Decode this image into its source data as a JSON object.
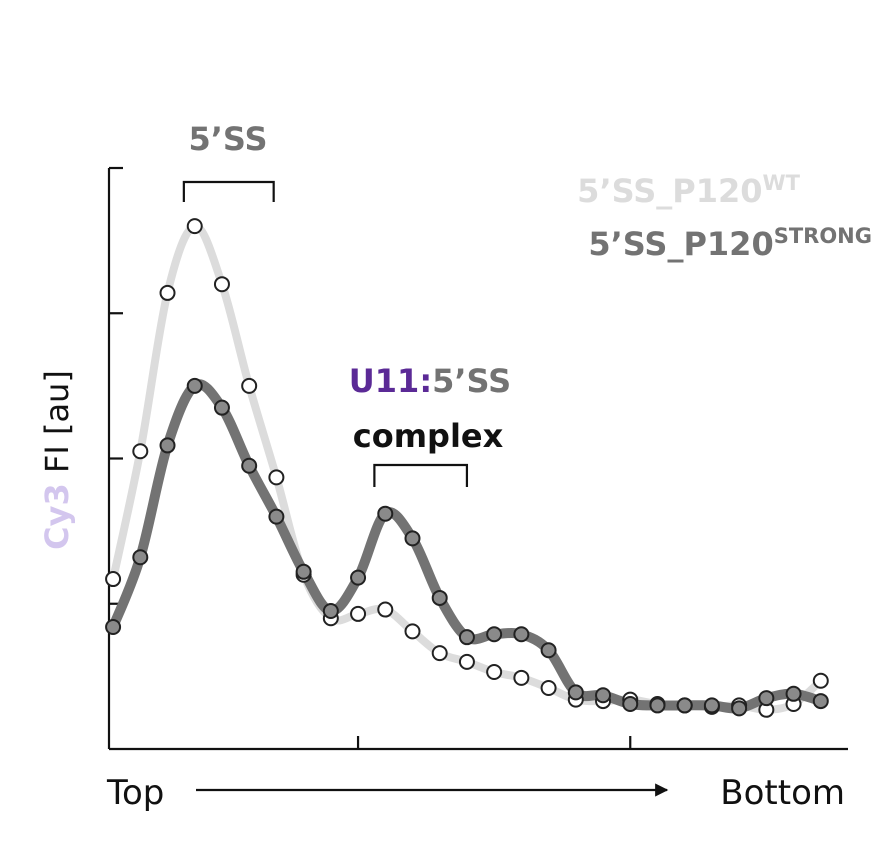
{
  "chart_data": {
    "type": "line",
    "ylabel_parts": [
      {
        "text": "Cy3",
        "color": "#d3c6ee"
      },
      {
        "text": " FI [au]",
        "color": "#111111"
      }
    ],
    "xlabel_left": "Top",
    "xlabel_right": "Bottom",
    "x": [
      1,
      2,
      3,
      4,
      5,
      6,
      7,
      8,
      9,
      10,
      11,
      12,
      13,
      14,
      15,
      16,
      17,
      18,
      19,
      20,
      21,
      22,
      23,
      24,
      25,
      26,
      27
    ],
    "xlim": [
      0.85,
      28
    ],
    "ylim": [
      0,
      4
    ],
    "y_ticks": [
      1,
      2,
      3,
      4
    ],
    "x_ticks": [
      10,
      20
    ],
    "series": [
      {
        "name": "5’SS_P120WT",
        "name_base": "5’SS_P120",
        "name_sup": "WT",
        "color": "#dcdcdc",
        "marker_fill": "#ffffff",
        "values": [
          1.17,
          2.05,
          3.14,
          3.6,
          3.2,
          2.5,
          1.87,
          1.2,
          0.9,
          0.93,
          0.96,
          0.81,
          0.66,
          0.6,
          0.53,
          0.49,
          0.42,
          0.34,
          0.33,
          0.34,
          0.31,
          0.3,
          0.29,
          0.3,
          0.27,
          0.31,
          0.47
        ]
      },
      {
        "name": "5’SS_P120STRONG",
        "name_base": "5’SS_P120",
        "name_sup": "STRONG",
        "color": "#737373",
        "marker_fill": "#8a8a8a",
        "values": [
          0.84,
          1.32,
          2.09,
          2.5,
          2.35,
          1.95,
          1.6,
          1.22,
          0.95,
          1.18,
          1.62,
          1.45,
          1.04,
          0.77,
          0.79,
          0.79,
          0.68,
          0.39,
          0.37,
          0.31,
          0.3,
          0.3,
          0.3,
          0.28,
          0.35,
          0.38,
          0.33
        ]
      }
    ],
    "annotations": [
      {
        "id": "ss",
        "parts": [
          {
            "text": "5’SS",
            "color": "#737373"
          }
        ],
        "bracket_x": [
          3.6,
          6.9
        ]
      },
      {
        "id": "complex",
        "parts": [
          {
            "text": "U11:",
            "color": "#5b2a96"
          },
          {
            "text": "5’SS",
            "color": "#737373"
          }
        ],
        "line2": "complex",
        "line2_color": "#111111",
        "bracket_x": [
          10.6,
          14.0
        ]
      }
    ],
    "legend_position": "top-right",
    "grid": false
  }
}
